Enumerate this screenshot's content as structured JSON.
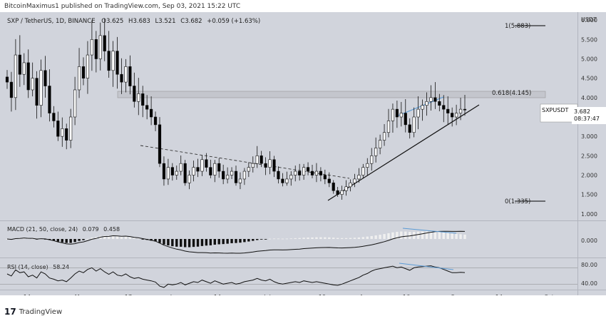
{
  "header": {
    "publish_line": "BitcoinMaximus1 published on TradingView.com, Sep 03, 2021 15:22 UTC"
  },
  "footer": {
    "logo_glyph": "17",
    "brand": "TradingView"
  },
  "colors": {
    "bg": "#d1d4dc",
    "up": "#ffffff",
    "down": "#000000",
    "accent": "#5b9bd5"
  },
  "chart_data": {
    "type": "candlestick",
    "symbol_line": "SXP / TetherUS, 1D, BINANCE",
    "ohlc_line": {
      "o": "3.625",
      "h": "3.683",
      "l": "3.521",
      "c": "3.682",
      "chg": "+0.059 (+1.63%)"
    },
    "price_axis": {
      "ticks": [
        "6.000",
        "5.500",
        "5.000",
        "4.500",
        "4.000",
        "3.500",
        "3.000",
        "2.500",
        "2.000",
        "1.500",
        "1.000"
      ],
      "unit": "USDT",
      "range": [
        0.85,
        6.15
      ]
    },
    "last_price": {
      "symbol": "SXPUSDT",
      "value": "3.682",
      "countdown": "08:37:47",
      "price": 3.682
    },
    "fib_levels": [
      {
        "label": "1(5.883)",
        "price": 5.883
      },
      {
        "label": "0.618(4.145)",
        "price": 4.145
      },
      {
        "label": "0(1.335)",
        "price": 1.335
      }
    ],
    "x_axis": {
      "labels": [
        "14",
        "May",
        "17",
        "Jun",
        "14",
        "Jul",
        "19",
        "Aug",
        "16",
        "Sep",
        "14",
        "Oct"
      ]
    },
    "macd": {
      "label": "MACD (21, 50, close, 24)",
      "values": [
        "0.079",
        "0.458"
      ],
      "ticks": [
        "0.000"
      ]
    },
    "rsi": {
      "label": "RSI (14, close)",
      "value": "58.24",
      "ticks": [
        "80.00",
        "40.00"
      ],
      "bands": [
        70,
        30
      ]
    },
    "approx_closes": [
      4.4,
      4.0,
      5.1,
      4.6,
      4.9,
      4.2,
      4.5,
      3.8,
      4.7,
      4.3,
      3.6,
      3.4,
      3.0,
      3.2,
      2.9,
      3.5,
      4.2,
      4.8,
      4.5,
      5.1,
      5.5,
      5.0,
      5.6,
      5.2,
      4.7,
      5.2,
      4.6,
      4.4,
      4.8,
      4.3,
      3.9,
      4.1,
      3.8,
      3.7,
      3.5,
      3.3,
      2.3,
      1.9,
      2.2,
      2.0,
      2.1,
      2.3,
      1.8,
      2.0,
      2.2,
      2.1,
      2.4,
      2.2,
      2.0,
      2.3,
      2.1,
      1.9,
      2.0,
      2.1,
      1.8,
      1.9,
      2.1,
      2.2,
      2.3,
      2.5,
      2.3,
      2.2,
      2.4,
      2.1,
      1.9,
      1.8,
      1.9,
      2.0,
      2.1,
      2.0,
      2.2,
      2.1,
      2.0,
      2.1,
      2.0,
      1.9,
      1.8,
      1.6,
      1.5,
      1.6,
      1.7,
      1.8,
      1.9,
      2.0,
      2.2,
      2.3,
      2.5,
      2.7,
      2.9,
      3.1,
      3.4,
      3.7,
      3.5,
      3.6,
      3.3,
      3.1,
      3.5,
      3.7,
      3.8,
      3.9,
      4.0,
      3.9,
      3.8,
      3.7,
      3.6,
      3.5,
      3.6,
      3.7,
      3.68
    ],
    "rsi_values": [
      55,
      50,
      65,
      58,
      60,
      48,
      52,
      45,
      60,
      55,
      45,
      42,
      38,
      40,
      36,
      45,
      55,
      62,
      58,
      66,
      70,
      62,
      68,
      60,
      54,
      60,
      52,
      50,
      55,
      48,
      44,
      46,
      42,
      40,
      38,
      35,
      25,
      22,
      30,
      28,
      30,
      34,
      28,
      32,
      36,
      34,
      40,
      36,
      32,
      38,
      34,
      30,
      32,
      34,
      30,
      32,
      36,
      38,
      40,
      44,
      40,
      38,
      42,
      36,
      32,
      30,
      32,
      34,
      36,
      34,
      38,
      36,
      34,
      36,
      34,
      32,
      30,
      28,
      27,
      30,
      34,
      38,
      42,
      46,
      52,
      56,
      62,
      66,
      68,
      70,
      72,
      74,
      70,
      72,
      68,
      64,
      70,
      72,
      73,
      74,
      75,
      72,
      70,
      66,
      62,
      58,
      58,
      59,
      58.24
    ]
  }
}
